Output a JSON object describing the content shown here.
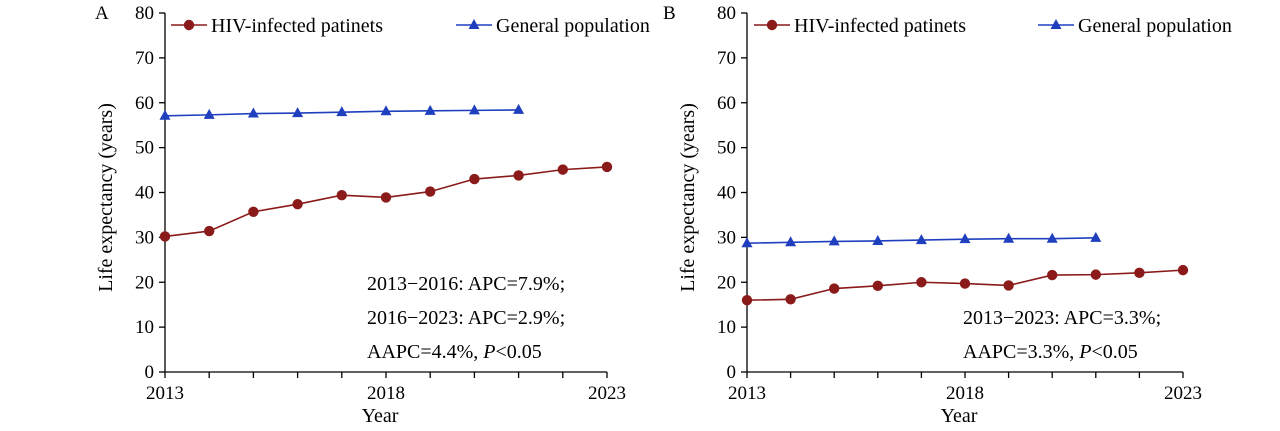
{
  "colors": {
    "hiv": "#8b1a1a",
    "general": "#1f3fbf",
    "axis": "#000000"
  },
  "chart_data": [
    {
      "panel": "A",
      "type": "line",
      "xlabel": "Year",
      "ylabel": "Life expectancy (years)",
      "xlim": [
        2013,
        2023
      ],
      "ylim": [
        0,
        80
      ],
      "xticks": [
        "2013",
        "2018",
        "2023"
      ],
      "yticks": [
        "0",
        "10",
        "20",
        "30",
        "40",
        "50",
        "60",
        "70",
        "80"
      ],
      "legend_position": "top",
      "series": [
        {
          "name": "HIV-infected patinets",
          "marker": "circle",
          "x": [
            2013,
            2014,
            2015,
            2016,
            2017,
            2018,
            2019,
            2020,
            2021,
            2022,
            2023
          ],
          "values": [
            30.2,
            31.4,
            35.7,
            37.4,
            39.4,
            38.9,
            40.2,
            43.0,
            43.8,
            45.1,
            45.7
          ]
        },
        {
          "name": "General population",
          "marker": "triangle",
          "x": [
            2013,
            2014,
            2015,
            2016,
            2017,
            2018,
            2019,
            2020,
            2021
          ],
          "values": [
            57.1,
            57.3,
            57.6,
            57.7,
            57.9,
            58.1,
            58.2,
            58.3,
            58.4
          ]
        }
      ],
      "annotations": [
        {
          "text": "2013−2016: APC=7.9%;"
        },
        {
          "text": "2016−2023: APC=2.9%;"
        },
        {
          "prefix": "AAPC=4.4%, ",
          "italic": "P",
          "suffix": "<0.05"
        }
      ]
    },
    {
      "panel": "B",
      "type": "line",
      "xlabel": "Year",
      "ylabel": "Life expectancy (years)",
      "xlim": [
        2013,
        2023
      ],
      "ylim": [
        0,
        80
      ],
      "xticks": [
        "2013",
        "2018",
        "2023"
      ],
      "yticks": [
        "0",
        "10",
        "20",
        "30",
        "40",
        "50",
        "60",
        "70",
        "80"
      ],
      "legend_position": "top",
      "series": [
        {
          "name": "HIV-infected patinets",
          "marker": "circle",
          "x": [
            2013,
            2014,
            2015,
            2016,
            2017,
            2018,
            2019,
            2020,
            2021,
            2022,
            2023
          ],
          "values": [
            16.0,
            16.2,
            18.6,
            19.2,
            20.0,
            19.7,
            19.3,
            21.6,
            21.7,
            22.1,
            22.7
          ]
        },
        {
          "name": "General population",
          "marker": "triangle",
          "x": [
            2013,
            2014,
            2015,
            2016,
            2017,
            2018,
            2019,
            2020,
            2021
          ],
          "values": [
            28.7,
            28.9,
            29.1,
            29.2,
            29.4,
            29.6,
            29.7,
            29.7,
            29.9
          ]
        }
      ],
      "annotations": [
        {
          "text": "2013−2023: APC=3.3%;"
        },
        {
          "prefix": "AAPC=3.3%, ",
          "italic": "P",
          "suffix": "<0.05"
        }
      ]
    }
  ]
}
